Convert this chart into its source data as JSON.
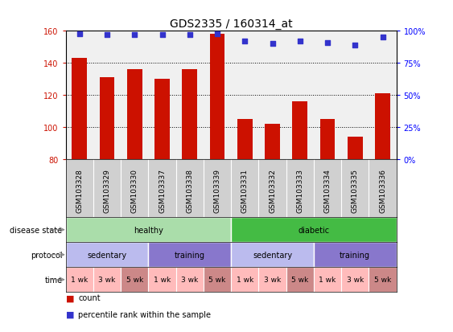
{
  "title": "GDS2335 / 160314_at",
  "samples": [
    "GSM103328",
    "GSM103329",
    "GSM103330",
    "GSM103337",
    "GSM103338",
    "GSM103339",
    "GSM103331",
    "GSM103332",
    "GSM103333",
    "GSM103334",
    "GSM103335",
    "GSM103336"
  ],
  "counts": [
    143,
    131,
    136,
    130,
    136,
    158,
    105,
    102,
    116,
    105,
    94,
    121
  ],
  "percentiles": [
    98,
    97,
    97,
    97,
    97,
    98,
    92,
    90,
    92,
    91,
    89,
    95
  ],
  "ylim_left": [
    80,
    160
  ],
  "ylim_right": [
    0,
    100
  ],
  "yticks_left": [
    80,
    100,
    120,
    140,
    160
  ],
  "yticks_right": [
    0,
    25,
    50,
    75,
    100
  ],
  "yticklabels_right": [
    "0%",
    "25%",
    "50%",
    "75%",
    "100%"
  ],
  "bar_color": "#cc1100",
  "dot_color": "#3333cc",
  "plot_bg": "#f0f0f0",
  "sample_bg": "#d0d0d0",
  "disease_state_data": [
    {
      "start": 0,
      "end": 6,
      "color": "#aaddaa",
      "label": "healthy"
    },
    {
      "start": 6,
      "end": 12,
      "color": "#44bb44",
      "label": "diabetic"
    }
  ],
  "protocol_data": [
    {
      "start": 0,
      "end": 3,
      "color": "#bbbbee",
      "label": "sedentary"
    },
    {
      "start": 3,
      "end": 6,
      "color": "#8877cc",
      "label": "training"
    },
    {
      "start": 6,
      "end": 9,
      "color": "#bbbbee",
      "label": "sedentary"
    },
    {
      "start": 9,
      "end": 12,
      "color": "#8877cc",
      "label": "training"
    }
  ],
  "time_labels": [
    "1 wk",
    "3 wk",
    "5 wk",
    "1 wk",
    "3 wk",
    "5 wk",
    "1 wk",
    "3 wk",
    "5 wk",
    "1 wk",
    "3 wk",
    "5 wk"
  ],
  "time_colors": [
    "#ffbbbb",
    "#ffbbbb",
    "#cc8888",
    "#ffbbbb",
    "#ffbbbb",
    "#cc8888",
    "#ffbbbb",
    "#ffbbbb",
    "#cc8888",
    "#ffbbbb",
    "#ffbbbb",
    "#cc8888"
  ],
  "row_labels": [
    "disease state",
    "protocol",
    "time"
  ],
  "label_fontsize": 7,
  "tick_fontsize": 7,
  "sample_fontsize": 6.5,
  "title_fontsize": 10,
  "row_label_fontsize": 7,
  "annotation_fontsize": 7
}
